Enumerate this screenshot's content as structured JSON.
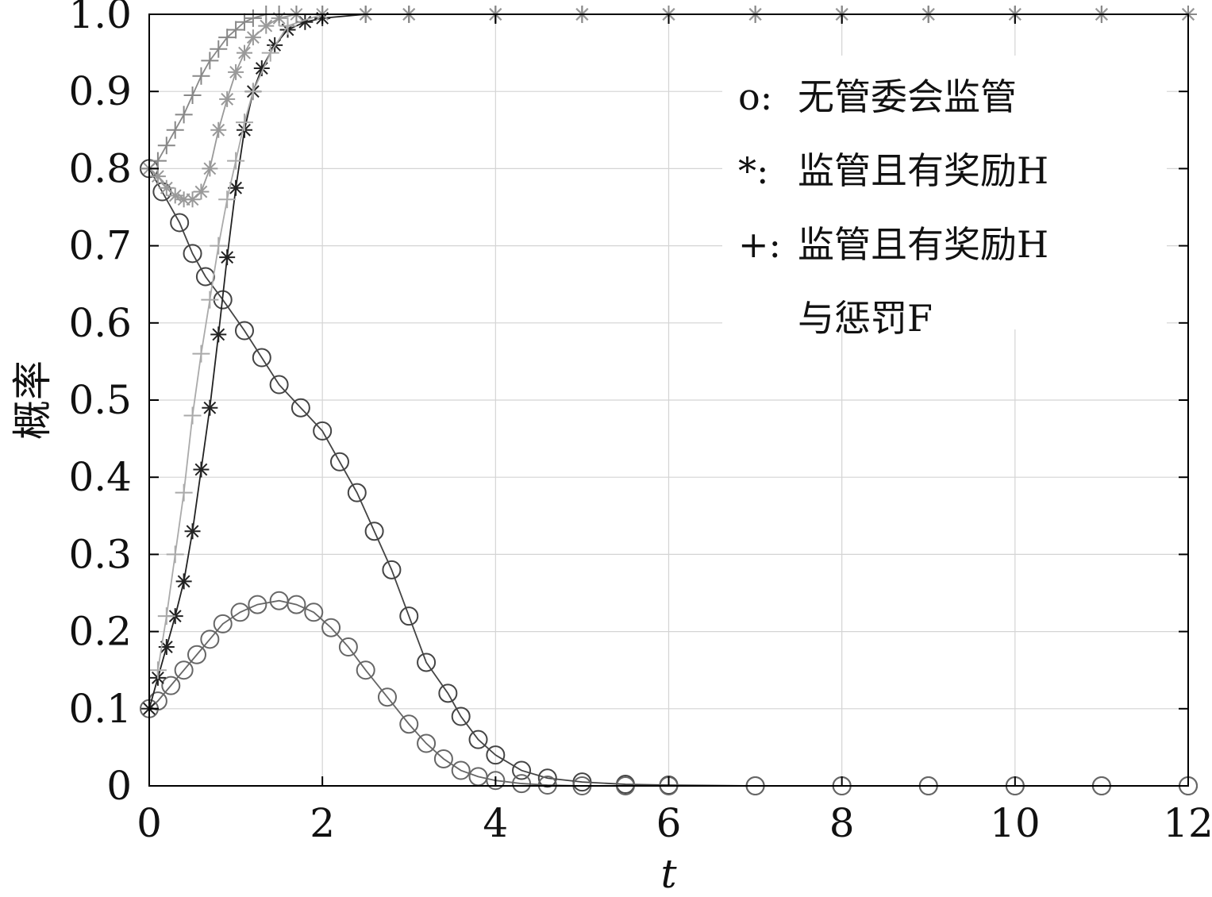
{
  "chart_data": {
    "type": "line",
    "xlabel": "t",
    "ylabel": "概率",
    "xlim": [
      0,
      12
    ],
    "ylim": [
      0,
      1.0
    ],
    "xticks": [
      "0",
      "2",
      "4",
      "6",
      "8",
      "10",
      "12"
    ],
    "yticks": [
      "0",
      "0.1",
      "0.2",
      "0.3",
      "0.4",
      "0.5",
      "0.6",
      "0.7",
      "0.8",
      "0.9",
      "1.0"
    ],
    "grid": true,
    "legend_position": "top-right",
    "legend": [
      {
        "symbol": "o:",
        "lines": [
          "无管委会监管"
        ]
      },
      {
        "symbol": "*:",
        "lines": [
          "监管且有奖励H"
        ]
      },
      {
        "symbol": "+:",
        "lines": [
          "监管且有奖励H",
          "与惩罚F"
        ]
      }
    ],
    "series": [
      {
        "marker": "o",
        "color": "#444444",
        "x": [
          0,
          0.15,
          0.35,
          0.5,
          0.65,
          0.85,
          1.1,
          1.3,
          1.5,
          1.75,
          2.0,
          2.2,
          2.4,
          2.6,
          2.8,
          3.0,
          3.2,
          3.45,
          3.6,
          3.8,
          4.0,
          4.3,
          4.6,
          5.0,
          5.5,
          6.0,
          7.0,
          8.0,
          9.0,
          10.0,
          11.0,
          12.0
        ],
        "y": [
          0.8,
          0.77,
          0.73,
          0.69,
          0.66,
          0.63,
          0.59,
          0.555,
          0.52,
          0.49,
          0.46,
          0.42,
          0.38,
          0.33,
          0.28,
          0.22,
          0.16,
          0.12,
          0.09,
          0.06,
          0.04,
          0.02,
          0.01,
          0.005,
          0.002,
          0.001,
          0,
          0,
          0,
          0,
          0,
          0
        ]
      },
      {
        "marker": "o",
        "color": "#666666",
        "x": [
          0,
          0.1,
          0.25,
          0.4,
          0.55,
          0.7,
          0.85,
          1.05,
          1.25,
          1.5,
          1.7,
          1.9,
          2.1,
          2.3,
          2.5,
          2.75,
          3.0,
          3.2,
          3.4,
          3.6,
          3.8,
          4.0,
          4.3,
          4.6,
          5.0,
          5.5,
          6.0,
          7.0,
          8.0,
          9.0,
          10.0,
          11.0,
          12.0
        ],
        "y": [
          0.1,
          0.11,
          0.13,
          0.15,
          0.17,
          0.19,
          0.21,
          0.225,
          0.235,
          0.24,
          0.235,
          0.225,
          0.205,
          0.18,
          0.15,
          0.115,
          0.08,
          0.055,
          0.035,
          0.02,
          0.012,
          0.007,
          0.003,
          0.001,
          0,
          0,
          0,
          0,
          0,
          0,
          0,
          0,
          0
        ]
      },
      {
        "marker": "*",
        "color": "#222222",
        "x": [
          0,
          0.1,
          0.2,
          0.3,
          0.4,
          0.5,
          0.6,
          0.7,
          0.8,
          0.9,
          1.0,
          1.1,
          1.2,
          1.3,
          1.45,
          1.6,
          1.8,
          2.0,
          2.5,
          3.0,
          4.0,
          5.0,
          6.0,
          7.0,
          8.0,
          9.0,
          10.0,
          11.0,
          12.0
        ],
        "y": [
          0.1,
          0.14,
          0.18,
          0.22,
          0.265,
          0.33,
          0.41,
          0.49,
          0.585,
          0.685,
          0.775,
          0.85,
          0.9,
          0.93,
          0.96,
          0.98,
          0.99,
          0.995,
          1.0,
          1.0,
          1.0,
          1.0,
          1.0,
          1.0,
          1.0,
          1.0,
          1.0,
          1.0,
          1.0
        ]
      },
      {
        "marker": "*",
        "color": "#999999",
        "x": [
          0,
          0.1,
          0.2,
          0.3,
          0.4,
          0.5,
          0.6,
          0.7,
          0.8,
          0.9,
          1.0,
          1.1,
          1.2,
          1.35,
          1.5,
          1.7,
          2.0,
          2.5,
          3.0,
          4.0,
          5.0,
          6.0,
          7.0,
          8.0,
          9.0,
          10.0,
          11.0,
          12.0
        ],
        "y": [
          0.8,
          0.79,
          0.775,
          0.765,
          0.76,
          0.76,
          0.77,
          0.8,
          0.85,
          0.89,
          0.925,
          0.95,
          0.97,
          0.985,
          0.995,
          1.0,
          1.0,
          1.0,
          1.0,
          1.0,
          1.0,
          1.0,
          1.0,
          1.0,
          1.0,
          1.0,
          1.0,
          1.0
        ]
      },
      {
        "marker": "+",
        "color": "#aaaaaa",
        "x": [
          0.1,
          0.2,
          0.3,
          0.4,
          0.5,
          0.6,
          0.7,
          0.8,
          0.9,
          1.0,
          1.1,
          1.2,
          1.4,
          1.6,
          2.0,
          2.5,
          3.0,
          4.0,
          5.0,
          6.0,
          7.0,
          8.0,
          9.0,
          10.0,
          11.0,
          12.0
        ],
        "y": [
          0.15,
          0.22,
          0.3,
          0.38,
          0.48,
          0.56,
          0.63,
          0.7,
          0.76,
          0.81,
          0.86,
          0.9,
          0.95,
          0.985,
          1.0,
          1.0,
          1.0,
          1.0,
          1.0,
          1.0,
          1.0,
          1.0,
          1.0,
          1.0,
          1.0,
          1.0
        ]
      },
      {
        "marker": "+",
        "color": "#888888",
        "x": [
          0,
          0.1,
          0.2,
          0.3,
          0.4,
          0.5,
          0.6,
          0.7,
          0.8,
          0.9,
          1.0,
          1.1,
          1.2,
          1.35,
          1.5,
          1.7,
          2.0,
          2.5,
          3.0,
          4.0,
          5.0,
          6.0,
          7.0,
          8.0,
          9.0,
          10.0,
          11.0,
          12.0
        ],
        "y": [
          0.8,
          0.81,
          0.83,
          0.85,
          0.87,
          0.895,
          0.92,
          0.94,
          0.955,
          0.97,
          0.98,
          0.99,
          0.995,
          1.0,
          1.0,
          1.0,
          1.0,
          1.0,
          1.0,
          1.0,
          1.0,
          1.0,
          1.0,
          1.0,
          1.0,
          1.0,
          1.0,
          1.0
        ]
      }
    ]
  }
}
